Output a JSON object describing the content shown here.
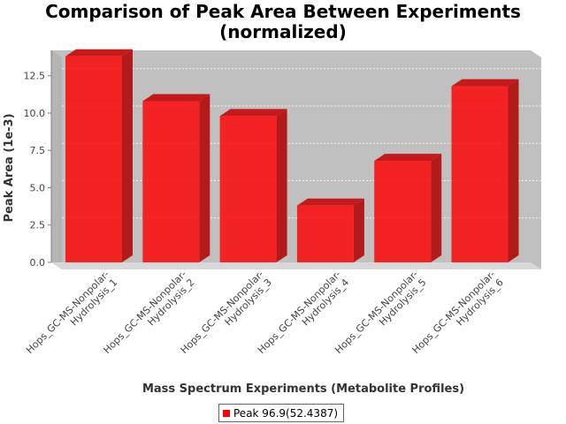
{
  "chart_data": {
    "type": "bar",
    "title_line1": "Comparison of Peak Area Between Experiments",
    "title_line2": "(normalized)",
    "xlabel": "Mass Spectrum Experiments (Metabolite Profiles)",
    "ylabel": "Peak Area (1e-3)",
    "categories": [
      [
        "Hops_GC-MS-Nonpolar-",
        "Hydrolysis_1"
      ],
      [
        "Hops_GC-MS-Nonpolar-",
        "Hydrolysis_2"
      ],
      [
        "Hops_GC-MS-Nonpolar-",
        "Hydrolysis_3"
      ],
      [
        "Hops_GC-MS-Nonpolar-",
        "Hydrolysis_4"
      ],
      [
        "Hops_GC-MS-Nonpolar-",
        "Hydrolysis_5"
      ],
      [
        "Hops_GC-MS-Nonpolar-",
        "Hydrolysis_6"
      ]
    ],
    "series": [
      {
        "name": "Peak 96.9(52.4387)",
        "values": [
          13.8,
          10.8,
          9.8,
          3.8,
          6.8,
          11.8
        ],
        "color": "#ff0000"
      }
    ],
    "yticks": [
      "0.0",
      "2.5",
      "5.0",
      "7.5",
      "10.0",
      "12.5"
    ],
    "ylim": [
      0,
      14.2
    ],
    "grid": true,
    "legend_position": "bottom"
  },
  "colors": {
    "plot_background": "#c0c0c0",
    "bar_front": "#ff0000",
    "bar_top": "#c41a1a",
    "bar_side": "#b31a1a"
  }
}
